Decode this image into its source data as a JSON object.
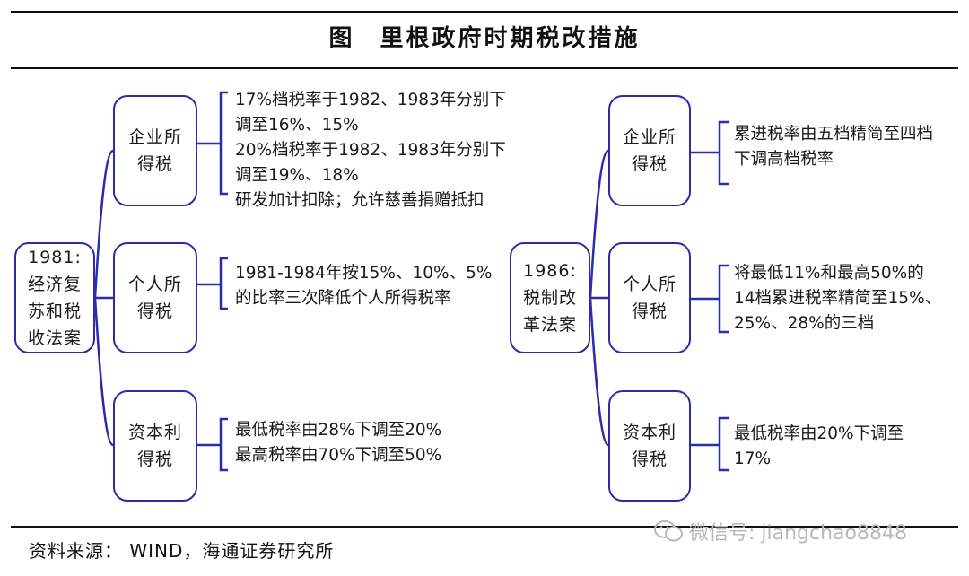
{
  "title": {
    "figure_label": "图",
    "text": "里根政府时期税改措施"
  },
  "left": {
    "root": {
      "lines": [
        "1981:",
        "经济复",
        "苏和税",
        "收法案"
      ]
    },
    "branches": [
      {
        "label": [
          "企业所",
          "得税"
        ],
        "details": [
          "17%档税率于1982、1983年分别下",
          "调至16%、15%",
          "20%档税率于1982、1983年分别下",
          "调至19%、18%",
          "研发加计扣除；允许慈善捐赠抵扣"
        ]
      },
      {
        "label": [
          "个人所",
          "得税"
        ],
        "details": [
          "1981-1984年按15%、10%、5%",
          "的比率三次降低个人所得税率"
        ]
      },
      {
        "label": [
          "资本利",
          "得税"
        ],
        "details": [
          "最低税率由28%下调至20%",
          "最高税率由70%下调至50%"
        ]
      }
    ]
  },
  "right": {
    "root": {
      "lines": [
        "1986:",
        "税制改",
        "革法案"
      ]
    },
    "branches": [
      {
        "label": [
          "企业所",
          "得税"
        ],
        "details": [
          "累进税率由五档精简至四档",
          "下调高档税率"
        ]
      },
      {
        "label": [
          "个人所",
          "得税"
        ],
        "details": [
          "将最低11%和最高50%的",
          "14档累进税率精简至15%、",
          "25%、28%的三档"
        ]
      },
      {
        "label": [
          "资本利",
          "得税"
        ],
        "details": [
          "最低税率由20%下调至",
          "17%"
        ]
      }
    ]
  },
  "source": "资料来源：  WIND，海通证券研究所",
  "watermark": "微信号: jiangchao8848",
  "colors": {
    "box_border": "#2b2bab",
    "connector": "#2b2bab",
    "rule": "#111111",
    "watermark": "#b8b8b8"
  }
}
